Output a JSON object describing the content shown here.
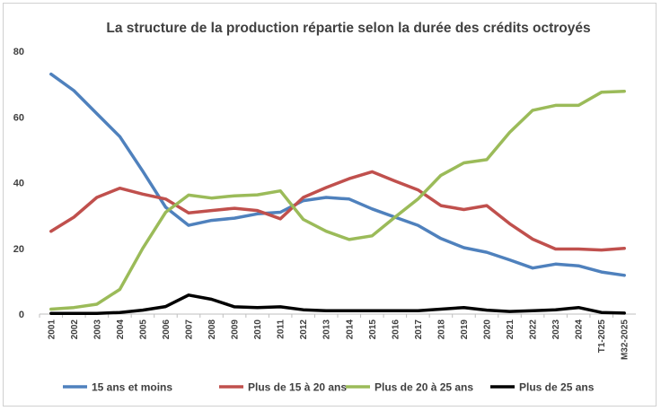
{
  "chart_data": {
    "type": "line",
    "title": "La structure de la production répartie selon la durée des crédits octroyés",
    "xlabel": "",
    "ylabel": "",
    "ylim": [
      0,
      80
    ],
    "yticks": [
      "0",
      "20",
      "40",
      "60",
      "80"
    ],
    "grid": false,
    "legend_position": "bottom",
    "categories": [
      "2001",
      "2002",
      "2003",
      "2004",
      "2005",
      "2006",
      "2007",
      "2008",
      "2009",
      "2010",
      "2011",
      "2012",
      "2013",
      "2014",
      "2015",
      "2016",
      "2017",
      "2018",
      "2019",
      "2020",
      "2021",
      "2022",
      "2023",
      "2024",
      "T1-2025",
      "M32-2025"
    ],
    "series": [
      {
        "name": "15 ans et moins",
        "color": "#4f81bd",
        "values": [
          73,
          68,
          61,
          54,
          43.5,
          32.5,
          27,
          28.5,
          29.2,
          30.5,
          31,
          34.5,
          35.5,
          35,
          32,
          29.5,
          27,
          23,
          20.2,
          18.8,
          16.5,
          14,
          15.2,
          14.7,
          12.8,
          11.8
        ]
      },
      {
        "name": "Plus de 15 à 20 ans",
        "color": "#c0504d",
        "values": [
          25.2,
          29.5,
          35.5,
          38.3,
          36.5,
          35,
          30.8,
          31.5,
          32.2,
          31.5,
          29,
          35.5,
          38.5,
          41.2,
          43.3,
          40.5,
          37.8,
          33,
          31.8,
          33,
          27.5,
          22.8,
          19.8,
          19.8,
          19.5,
          20
        ]
      },
      {
        "name": "Plus de 20 à 25 ans",
        "color": "#9bbb59",
        "values": [
          1.5,
          2,
          3,
          7.5,
          20,
          31,
          36.2,
          35.3,
          36,
          36.3,
          37.5,
          28.8,
          25.2,
          22.7,
          23.8,
          29.5,
          35,
          42.2,
          46,
          47,
          55.3,
          62,
          63.5,
          63.5,
          67.5,
          67.8
        ]
      },
      {
        "name": "Plus de 25 ans",
        "color": "#000000",
        "values": [
          0.2,
          0.2,
          0.2,
          0.5,
          1.2,
          2.3,
          5.8,
          4.5,
          2.2,
          2,
          2.2,
          1.3,
          1,
          1,
          1,
          1,
          1,
          1.5,
          2,
          1.2,
          0.8,
          1,
          1.3,
          2,
          0.5,
          0.3
        ]
      }
    ]
  }
}
